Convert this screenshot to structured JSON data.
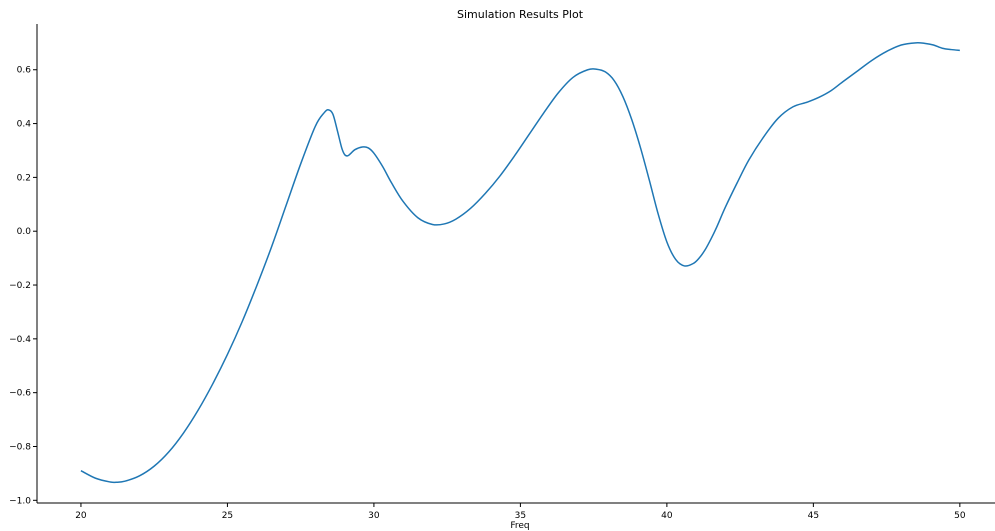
{
  "chart_data": {
    "type": "line",
    "title": "Simulation Results Plot",
    "xlabel": "Freq",
    "ylabel": "",
    "xlim": [
      18.5,
      51.2
    ],
    "ylim": [
      -1.01,
      0.77
    ],
    "x_ticks": [
      20,
      25,
      30,
      35,
      40,
      45,
      50
    ],
    "y_ticks": [
      -1.0,
      -0.8,
      -0.6,
      -0.4,
      -0.2,
      0.0,
      0.2,
      0.4,
      0.6
    ],
    "x_tick_labels": [
      "20",
      "25",
      "30",
      "35",
      "40",
      "45",
      "50"
    ],
    "y_tick_labels": [
      "−1.0",
      "−0.8",
      "−0.6",
      "−0.4",
      "−0.2",
      "0.0",
      "0.2",
      "0.4",
      "0.6"
    ],
    "grid": false,
    "line_color": "#1f77b4",
    "series": [
      {
        "x": [
          20.0,
          20.5,
          21.0,
          21.2,
          21.5,
          22.0,
          22.5,
          23.0,
          23.5,
          24.0,
          24.5,
          25.0,
          25.5,
          26.0,
          26.5,
          27.0,
          27.5,
          28.0,
          28.3,
          28.45,
          28.6,
          28.75,
          28.9,
          29.0,
          29.1,
          29.2,
          29.35,
          29.6,
          29.8,
          30.0,
          30.3,
          30.6,
          31.0,
          31.5,
          32.0,
          32.4,
          32.8,
          33.3,
          33.8,
          34.3,
          34.8,
          35.3,
          35.8,
          36.3,
          36.8,
          37.3,
          37.6,
          37.9,
          38.2,
          38.5,
          38.8,
          39.1,
          39.4,
          39.7,
          40.0,
          40.3,
          40.6,
          40.9,
          41.1,
          41.3,
          41.5,
          41.7,
          42.0,
          42.4,
          42.8,
          43.3,
          43.8,
          44.3,
          44.8,
          45.2,
          45.6,
          46.0,
          46.5,
          47.0,
          47.5,
          48.0,
          48.5,
          48.8,
          49.1,
          49.4,
          49.7,
          50.0
        ],
        "y": [
          -0.89,
          -0.918,
          -0.932,
          -0.933,
          -0.929,
          -0.909,
          -0.873,
          -0.82,
          -0.75,
          -0.665,
          -0.567,
          -0.458,
          -0.337,
          -0.203,
          -0.06,
          0.095,
          0.25,
          0.39,
          0.44,
          0.451,
          0.435,
          0.375,
          0.31,
          0.285,
          0.28,
          0.288,
          0.303,
          0.313,
          0.31,
          0.29,
          0.24,
          0.18,
          0.11,
          0.05,
          0.025,
          0.027,
          0.045,
          0.085,
          0.14,
          0.205,
          0.28,
          0.36,
          0.44,
          0.515,
          0.572,
          0.6,
          0.602,
          0.592,
          0.56,
          0.5,
          0.415,
          0.31,
          0.19,
          0.065,
          -0.04,
          -0.105,
          -0.129,
          -0.12,
          -0.1,
          -0.07,
          -0.03,
          0.015,
          0.09,
          0.18,
          0.265,
          0.35,
          0.42,
          0.462,
          0.48,
          0.498,
          0.522,
          0.555,
          0.595,
          0.635,
          0.668,
          0.692,
          0.7,
          0.698,
          0.692,
          0.68,
          0.675,
          0.672
        ]
      }
    ]
  }
}
